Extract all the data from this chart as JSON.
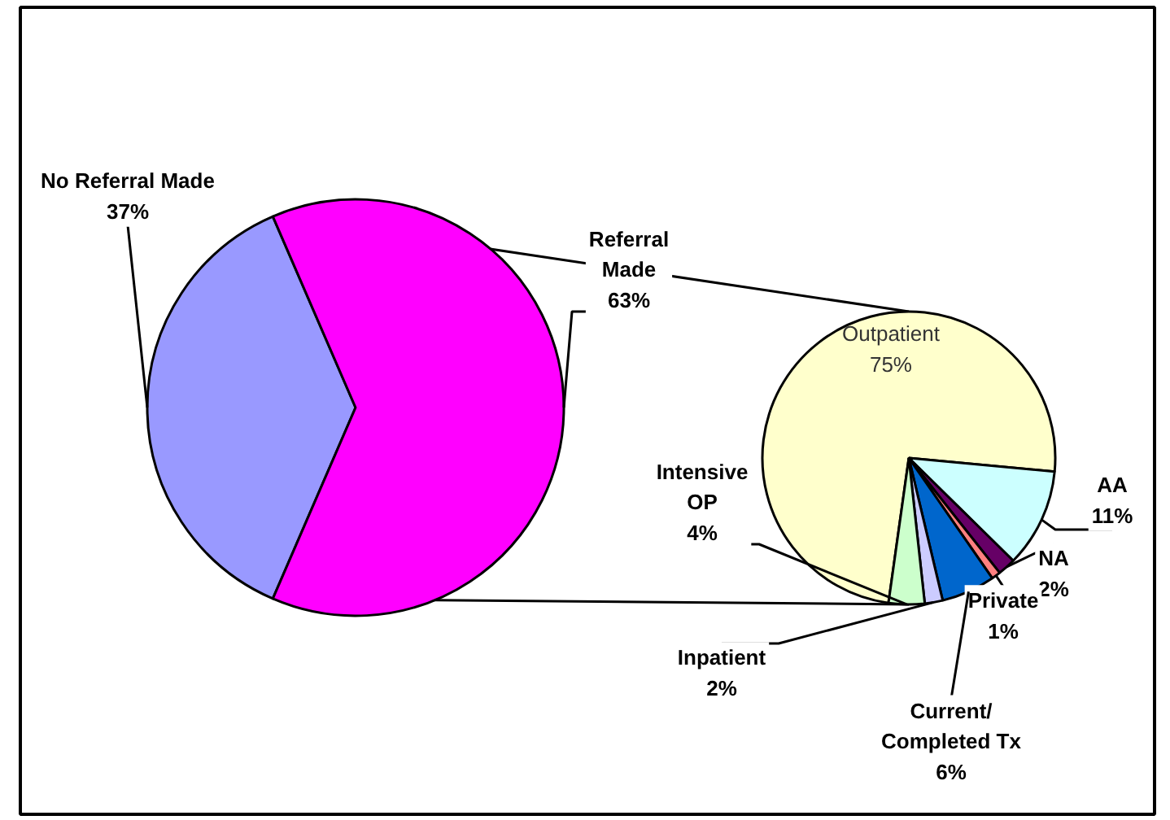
{
  "chart_data": [
    {
      "type": "pie",
      "categories": [
        "No Referral Made",
        "Referral Made"
      ],
      "values": [
        37,
        63
      ],
      "colors": [
        "#9999ff",
        "#ff00ff"
      ],
      "value_labels": [
        "37%",
        "63%"
      ]
    },
    {
      "type": "pie",
      "categories": [
        "Outpatient",
        "AA",
        "NA",
        "Private",
        "Current/ Completed Tx",
        "Inpatient",
        "Intensive OP"
      ],
      "values": [
        75,
        11,
        2,
        1,
        6,
        2,
        4
      ],
      "colors": [
        "#ffffcc",
        "#ccffff",
        "#660066",
        "#ff8080",
        "#0066cc",
        "#ccccff",
        "#ccffcc"
      ],
      "value_labels": [
        "75%",
        "11%",
        "2%",
        "1%",
        "6%",
        "2%",
        "4%"
      ]
    }
  ]
}
